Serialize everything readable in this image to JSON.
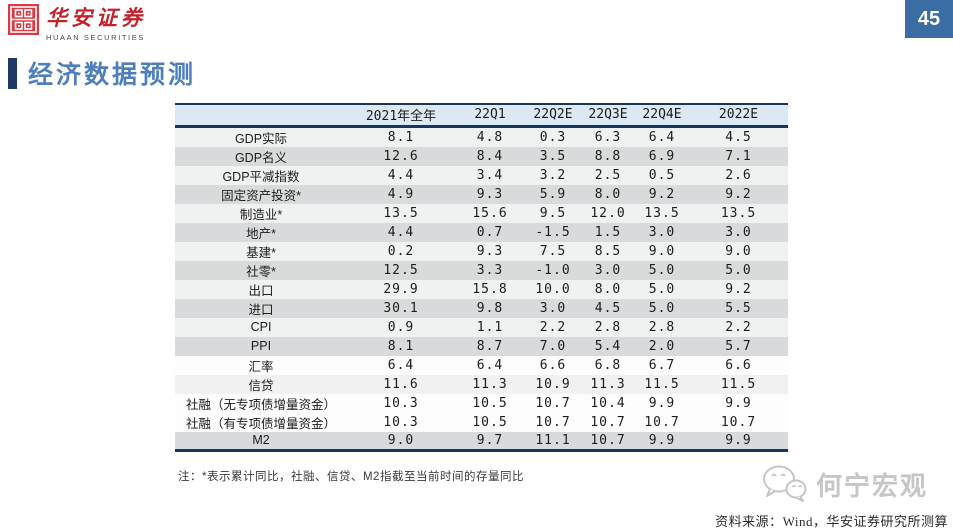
{
  "page": {
    "number": "45"
  },
  "brand": {
    "name_cn": "华安证券",
    "name_en": "HUAAN SECURITIES"
  },
  "title": "经济数据预测",
  "table": {
    "headers": [
      "",
      "2021年全年",
      "22Q1",
      "22Q2E",
      "22Q3E",
      "22Q4E",
      "2022E"
    ],
    "rows": [
      {
        "label": "GDP实际",
        "values": [
          "8.1",
          "4.8",
          "0.3",
          "6.3",
          "6.4",
          "4.5"
        ],
        "shade": "light"
      },
      {
        "label": "GDP名义",
        "values": [
          "12.6",
          "8.4",
          "3.5",
          "8.8",
          "6.9",
          "7.1"
        ],
        "shade": "dark"
      },
      {
        "label": "GDP平减指数",
        "values": [
          "4.4",
          "3.4",
          "3.2",
          "2.5",
          "0.5",
          "2.6"
        ],
        "shade": "light"
      },
      {
        "label": "固定资产投资*",
        "values": [
          "4.9",
          "9.3",
          "5.9",
          "8.0",
          "9.2",
          "9.2"
        ],
        "shade": "dark"
      },
      {
        "label": "制造业*",
        "values": [
          "13.5",
          "15.6",
          "9.5",
          "12.0",
          "13.5",
          "13.5"
        ],
        "shade": "light"
      },
      {
        "label": "地产*",
        "values": [
          "4.4",
          "0.7",
          "-1.5",
          "1.5",
          "3.0",
          "3.0"
        ],
        "shade": "dark"
      },
      {
        "label": "基建*",
        "values": [
          "0.2",
          "9.3",
          "7.5",
          "8.5",
          "9.0",
          "9.0"
        ],
        "shade": "light"
      },
      {
        "label": "社零*",
        "values": [
          "12.5",
          "3.3",
          "-1.0",
          "3.0",
          "5.0",
          "5.0"
        ],
        "shade": "dark"
      },
      {
        "label": "出口",
        "values": [
          "29.9",
          "15.8",
          "10.0",
          "8.0",
          "5.0",
          "9.2"
        ],
        "shade": "light"
      },
      {
        "label": "进口",
        "values": [
          "30.1",
          "9.8",
          "3.0",
          "4.5",
          "5.0",
          "5.5"
        ],
        "shade": "dark"
      },
      {
        "label": "CPI",
        "values": [
          "0.9",
          "1.1",
          "2.2",
          "2.8",
          "2.8",
          "2.2"
        ],
        "shade": "light"
      },
      {
        "label": "PPI",
        "values": [
          "8.1",
          "8.7",
          "7.0",
          "5.4",
          "2.0",
          "5.7"
        ],
        "shade": "dark"
      },
      {
        "label": "汇率",
        "values": [
          "6.4",
          "6.4",
          "6.6",
          "6.8",
          "6.7",
          "6.6"
        ],
        "shade": "white"
      },
      {
        "label": "信贷",
        "values": [
          "11.6",
          "11.3",
          "10.9",
          "11.3",
          "11.5",
          "11.5"
        ],
        "shade": "light"
      },
      {
        "label": "社融（无专项债增量资金）",
        "values": [
          "10.3",
          "10.5",
          "10.7",
          "10.4",
          "9.9",
          "9.9"
        ],
        "shade": "white"
      },
      {
        "label": "社融（有专项债增量资金）",
        "values": [
          "10.3",
          "10.5",
          "10.7",
          "10.7",
          "10.7",
          "10.7"
        ],
        "shade": "white"
      },
      {
        "label": "M2",
        "values": [
          "9.0",
          "9.7",
          "11.1",
          "10.7",
          "9.9",
          "9.9"
        ],
        "shade": "dark"
      }
    ]
  },
  "note": "注：*表示累计同比，社融、信贷、M2指截至当前时间的存量同比",
  "watermark": "何宁宏观",
  "source": "资料来源：Wind，华安证券研究所测算",
  "colors": {
    "brand_red": "#d93a43",
    "title_blue": "#4f7ebd",
    "navy": "#17365d",
    "header_bg": "#dce9f5",
    "row_light": "#f0f1f1",
    "row_dark": "#d9dadb",
    "page_badge_bg": "#3a6da4",
    "watermark_gray": "#c6c6c6"
  }
}
